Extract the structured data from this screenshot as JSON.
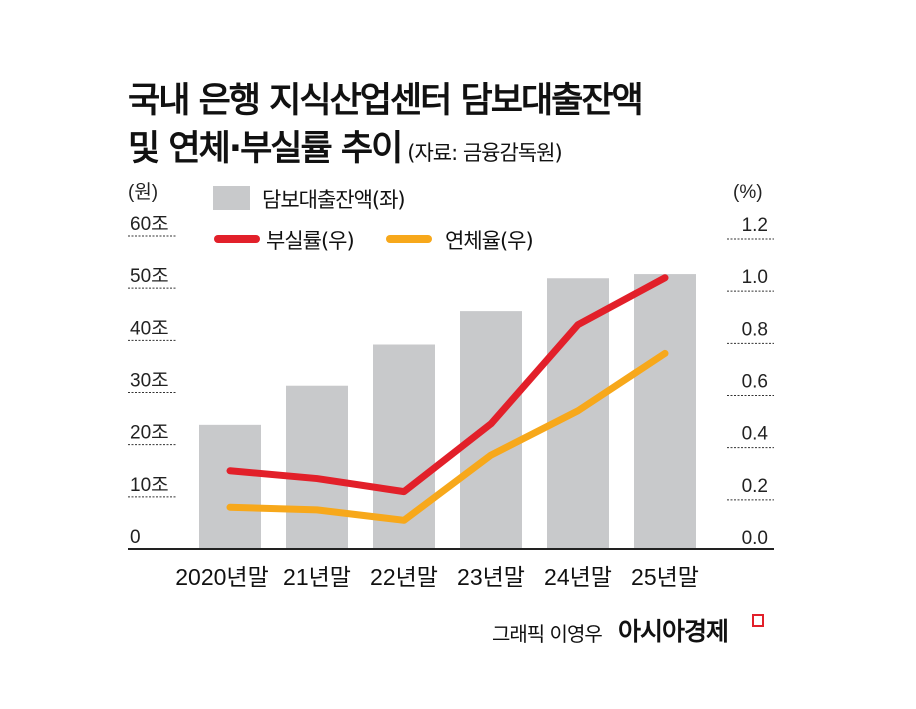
{
  "title_line1": "국내 은행 지식산업센터 담보대출잔액",
  "title_line2": "및 연체·부실률 추이",
  "source": "(자료: 금융감독원)",
  "credit": "그래픽 이영우",
  "logo": "아시아경제",
  "colors": {
    "bar": "#c8c9cb",
    "npl": "#e2202a",
    "delinquency": "#f7a81b",
    "logo_mark": "#e2202a"
  },
  "chart_data": {
    "type": "bar+line",
    "categories": [
      "2020년말",
      "21년말",
      "22년말",
      "23년말",
      "24년말",
      "25년말"
    ],
    "left_axis": {
      "unit": "(원)",
      "ticks": [
        "0",
        "10조",
        "20조",
        "30조",
        "40조",
        "50조",
        "60조"
      ],
      "range": [
        0,
        60
      ]
    },
    "right_axis": {
      "unit": "(%)",
      "ticks": [
        "0.0",
        "0.2",
        "0.4",
        "0.6",
        "0.8",
        "1.0",
        "1.2"
      ],
      "range": [
        0,
        1.2
      ]
    },
    "series": [
      {
        "name": "담보대출잔액(좌)",
        "type": "bar",
        "axis": "left",
        "unit": "조원",
        "values": [
          23.8,
          31.3,
          39.2,
          45.6,
          51.9,
          52.7
        ]
      },
      {
        "name": "부실률(우)",
        "type": "line",
        "axis": "right",
        "unit": "%",
        "values": [
          0.3,
          0.27,
          0.22,
          0.48,
          0.86,
          1.04
        ]
      },
      {
        "name": "연체율(우)",
        "type": "line",
        "axis": "right",
        "unit": "%",
        "values": [
          0.16,
          0.15,
          0.11,
          0.36,
          0.53,
          0.75
        ]
      }
    ],
    "grid": "dotted ticks at axes",
    "legend": "top-left"
  }
}
